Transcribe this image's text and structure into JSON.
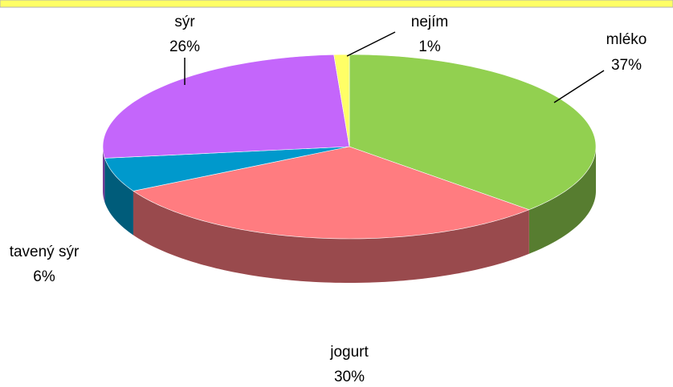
{
  "chart_data": {
    "type": "pie3d",
    "categories": [
      "mléko",
      "jogurt",
      "tavený sýr",
      "sýr",
      "nejím"
    ],
    "values": [
      37,
      30,
      6,
      26,
      1
    ],
    "value_labels": [
      "37%",
      "30%",
      "6%",
      "26%",
      "1%"
    ],
    "colors": [
      "#92d050",
      "#ff7c80",
      "#0099cc",
      "#c466fb",
      "#ffff66"
    ]
  }
}
